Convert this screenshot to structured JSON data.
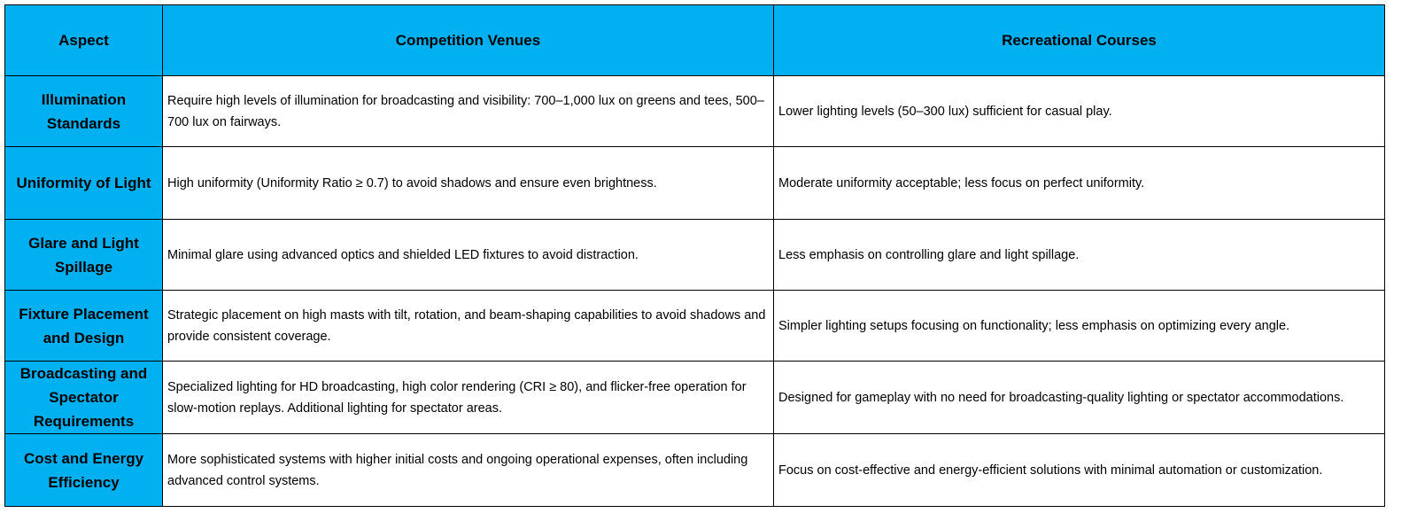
{
  "table": {
    "header": [
      "Aspect",
      "Competition Venues",
      "Recreational Courses"
    ],
    "rows": [
      [
        "Illumination Standards",
        "Require high levels of illumination for broadcasting and visibility: 700–1,000 lux on greens and tees, 500–700 lux on fairways.",
        "Lower lighting levels (50–300 lux) sufficient for casual play."
      ],
      [
        "Uniformity of Light",
        "High uniformity (Uniformity Ratio ≥ 0.7) to avoid shadows and ensure even brightness.",
        "Moderate uniformity acceptable; less focus on perfect uniformity."
      ],
      [
        "Glare and Light Spillage",
        "Minimal glare using advanced optics and shielded LED fixtures to avoid distraction.",
        "Less emphasis on controlling glare and light spillage."
      ],
      [
        "Fixture Placement and Design",
        "Strategic placement on high masts with tilt, rotation, and beam-shaping capabilities to avoid shadows and provide consistent coverage.",
        "Simpler lighting setups focusing on functionality; less emphasis on optimizing every angle."
      ],
      [
        "Broadcasting and Spectator Requirements",
        "Specialized lighting for HD broadcasting, high color rendering (CRI ≥ 80), and flicker-free operation for slow-motion replays. Additional lighting for spectator areas.",
        "Designed for gameplay with no need for broadcasting-quality lighting or spectator accommodations."
      ],
      [
        "Cost and Energy Efficiency",
        "More sophisticated systems with higher initial costs and ongoing operational expenses, often including advanced control systems.",
        "Focus on cost-effective and energy-efficient solutions with minimal automation or customization."
      ]
    ]
  }
}
